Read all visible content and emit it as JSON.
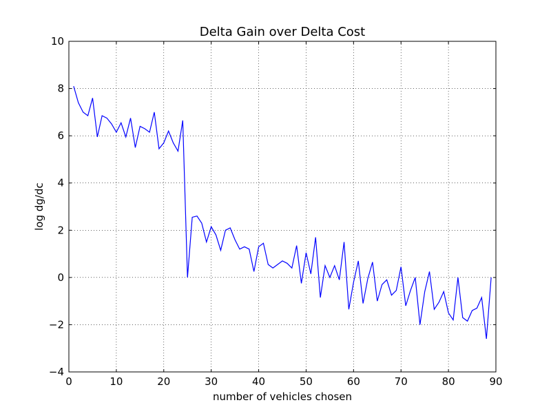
{
  "chart_data": {
    "type": "line",
    "title": "Delta Gain over Delta Cost",
    "xlabel": "number of vehicles chosen",
    "ylabel": "log dg/dc",
    "xlim": [
      0,
      90
    ],
    "ylim": [
      -4,
      10
    ],
    "xticks": [
      0,
      10,
      20,
      30,
      40,
      50,
      60,
      70,
      80,
      90
    ],
    "yticks": [
      -4,
      -2,
      0,
      2,
      4,
      6,
      8,
      10
    ],
    "grid": true,
    "grid_style": "dotted",
    "series": [
      {
        "color": "#0000ff",
        "x": [
          1,
          2,
          3,
          4,
          5,
          6,
          7,
          8,
          9,
          10,
          11,
          12,
          13,
          14,
          15,
          16,
          17,
          18,
          19,
          20,
          21,
          22,
          23,
          24,
          25,
          26,
          27,
          28,
          29,
          30,
          31,
          32,
          33,
          34,
          35,
          36,
          37,
          38,
          39,
          40,
          41,
          42,
          43,
          44,
          45,
          46,
          47,
          48,
          49,
          50,
          51,
          52,
          53,
          54,
          55,
          56,
          57,
          58,
          59,
          60,
          61,
          62,
          63,
          64,
          65,
          66,
          67,
          68,
          69,
          70,
          71,
          72,
          73,
          74,
          75,
          76,
          77,
          78,
          79,
          80,
          81,
          82,
          83,
          84,
          85,
          86,
          87,
          88,
          89
        ],
        "values": [
          8.1,
          7.4,
          7.0,
          6.85,
          7.6,
          5.95,
          6.85,
          6.75,
          6.5,
          6.15,
          6.55,
          5.95,
          6.75,
          5.5,
          6.4,
          6.3,
          6.15,
          7.0,
          5.45,
          5.7,
          6.2,
          5.7,
          5.35,
          6.65,
          0.0,
          2.55,
          2.6,
          2.3,
          1.5,
          2.15,
          1.8,
          1.15,
          2.0,
          2.1,
          1.6,
          1.2,
          1.3,
          1.2,
          0.25,
          1.3,
          1.45,
          0.55,
          0.4,
          0.55,
          0.7,
          0.6,
          0.4,
          1.35,
          -0.25,
          1.05,
          0.15,
          1.7,
          -0.85,
          0.5,
          0.0,
          0.5,
          -0.1,
          1.5,
          -1.35,
          -0.2,
          0.7,
          -1.1,
          -0.05,
          0.65,
          -1.0,
          -0.3,
          -0.1,
          -0.75,
          -0.55,
          0.45,
          -1.2,
          -0.55,
          0.0,
          -2.0,
          -0.6,
          0.25,
          -1.35,
          -1.05,
          -0.6,
          -1.5,
          -1.8,
          0.0,
          -1.7,
          -1.85,
          -1.4,
          -1.3,
          -0.85,
          -2.6,
          0.0
        ]
      }
    ]
  }
}
